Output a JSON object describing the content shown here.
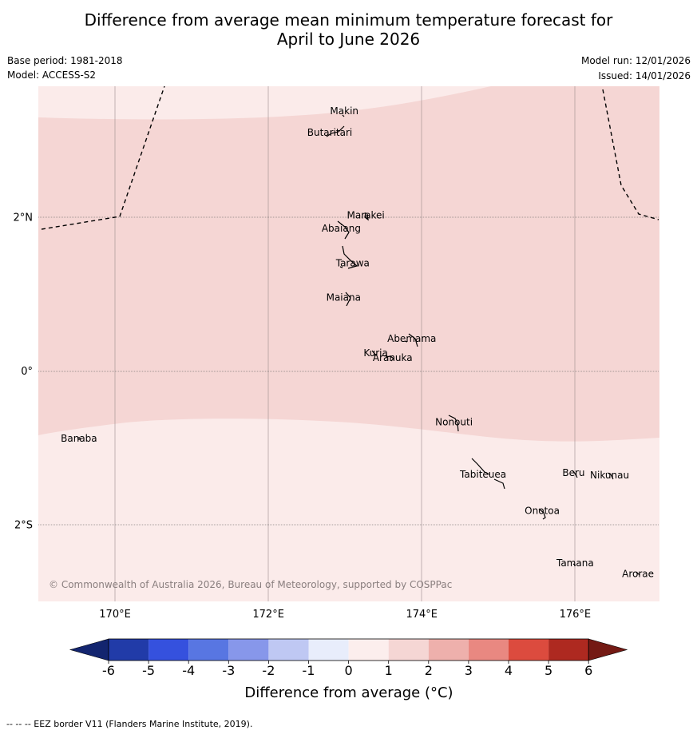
{
  "title": {
    "line1": "Difference from average mean minimum temperature forecast for",
    "line2": "April to June 2026"
  },
  "meta": {
    "base_period": "Base period: 1981-2018",
    "model": "Model: ACCESS-S2",
    "model_run": "Model run: 12/01/2026",
    "issued": "Issued: 14/01/2026"
  },
  "map": {
    "lon_range": [
      169,
      177.1
    ],
    "lat_range": [
      -3.0,
      3.7
    ],
    "lon_ticks": [
      {
        "value": 170,
        "label": "170°E"
      },
      {
        "value": 172,
        "label": "172°E"
      },
      {
        "value": 174,
        "label": "174°E"
      },
      {
        "value": 176,
        "label": "176°E"
      }
    ],
    "lat_ticks": [
      {
        "value": 2,
        "label": "2°N"
      },
      {
        "value": 0,
        "label": "0°"
      },
      {
        "value": -2,
        "label": "2°S"
      }
    ],
    "places": [
      {
        "name": "Makin",
        "lon": 172.99,
        "lat": 3.38
      },
      {
        "name": "Butaritari",
        "lon": 172.8,
        "lat": 3.1
      },
      {
        "name": "Marakei",
        "lon": 173.27,
        "lat": 2.02
      },
      {
        "name": "Abaiang",
        "lon": 172.95,
        "lat": 1.85
      },
      {
        "name": "Tarawa",
        "lon": 173.1,
        "lat": 1.4
      },
      {
        "name": "Maiana",
        "lon": 172.98,
        "lat": 0.95
      },
      {
        "name": "Abemama",
        "lon": 173.87,
        "lat": 0.42
      },
      {
        "name": "Kuria",
        "lon": 173.4,
        "lat": 0.23
      },
      {
        "name": "Aranuka",
        "lon": 173.62,
        "lat": 0.17
      },
      {
        "name": "Nonouti",
        "lon": 174.42,
        "lat": -0.67
      },
      {
        "name": "Banaba",
        "lon": 169.53,
        "lat": -0.88
      },
      {
        "name": "Tabiteuea",
        "lon": 174.8,
        "lat": -1.35
      },
      {
        "name": "Beru",
        "lon": 175.98,
        "lat": -1.33
      },
      {
        "name": "Nikunau",
        "lon": 176.45,
        "lat": -1.36
      },
      {
        "name": "Onotoa",
        "lon": 175.57,
        "lat": -1.82
      },
      {
        "name": "Tamana",
        "lon": 176.0,
        "lat": -2.5
      },
      {
        "name": "Arorae",
        "lon": 176.82,
        "lat": -2.64
      }
    ],
    "band_1_to_2_color": "#f5d6d4",
    "band_0_to_1_color": "#fbebea",
    "copyright": "© Commonwealth of Australia 2026, Bureau of Meteorology, supported by COSPPac"
  },
  "colorbar": {
    "labels": [
      "-6",
      "-5",
      "-4",
      "-3",
      "-2",
      "-1",
      "0",
      "1",
      "2",
      "3",
      "4",
      "5",
      "6"
    ],
    "colors": [
      "#213ba8",
      "#3551de",
      "#5876e2",
      "#8797ea",
      "#bfc8f3",
      "#e8edfb",
      "#fceeed",
      "#f5d6d4",
      "#eeb0ac",
      "#e98881",
      "#dc4b3e",
      "#ae2920"
    ],
    "under_color": "#13256f",
    "over_color": "#741a14",
    "title": "Difference from average (°C)"
  },
  "footer": "-- -- -- EEZ border V11 (Flanders Marine Institute, 2019)."
}
